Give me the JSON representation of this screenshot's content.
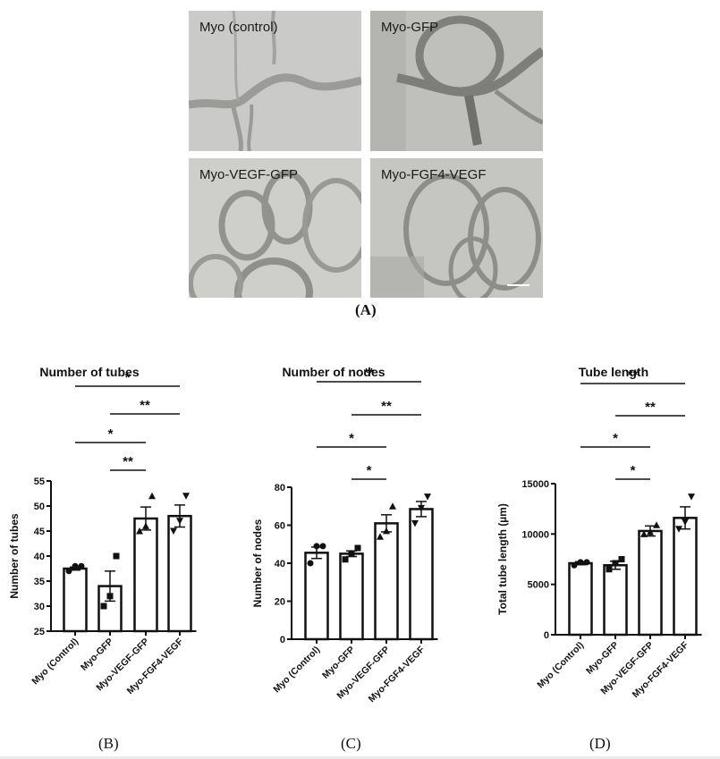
{
  "panel_a": {
    "letter": "(A)",
    "images": [
      {
        "label": "Myo (control)"
      },
      {
        "label": "Myo-GFP"
      },
      {
        "label": "Myo-VEGF-GFP"
      },
      {
        "label": "Myo-FGF4-VEGF"
      }
    ]
  },
  "panel_letters": {
    "b": "(B)",
    "c": "(C)",
    "d": "(D)"
  },
  "chart_data": [
    {
      "type": "bar",
      "panel": "B",
      "title": "Number of tubes",
      "xlabel": "",
      "ylabel": "Number of tubes",
      "categories": [
        "Myo (Control)",
        "Myo-GFP",
        "Myo-VEGF-GFP",
        "Myo-FGF4-VEGF"
      ],
      "values": [
        37.5,
        34,
        47.5,
        48
      ],
      "sem": [
        0.3,
        3.0,
        2.3,
        2.2
      ],
      "points": [
        [
          37,
          38,
          38
        ],
        [
          30,
          32,
          40
        ],
        [
          45,
          46,
          52
        ],
        [
          45,
          47,
          52
        ]
      ],
      "markers": [
        "circle",
        "square",
        "triangle-up",
        "triangle-down"
      ],
      "ylim": [
        25,
        55
      ],
      "yticks": [
        25,
        30,
        35,
        40,
        45,
        50,
        55
      ],
      "significance": [
        {
          "from": 0,
          "to": 3,
          "label": "*"
        },
        {
          "from": 1,
          "to": 3,
          "label": "**"
        },
        {
          "from": 0,
          "to": 2,
          "label": "*"
        },
        {
          "from": 1,
          "to": 2,
          "label": "**"
        }
      ],
      "grid": false
    },
    {
      "type": "bar",
      "panel": "C",
      "title": "Number of nodes",
      "xlabel": "",
      "ylabel": "Number of nodes",
      "categories": [
        "Myo (Control)",
        "Myo-GFP",
        "Myo-VEGF-GFP",
        "Myo-FGF4-VEGF"
      ],
      "values": [
        45.5,
        45,
        61,
        68.5
      ],
      "sem": [
        3.0,
        1.5,
        4.5,
        4.0
      ],
      "points": [
        [
          40,
          49,
          49
        ],
        [
          42,
          45,
          48
        ],
        [
          54,
          57,
          70
        ],
        [
          61,
          69,
          75
        ]
      ],
      "markers": [
        "circle",
        "square",
        "triangle-up",
        "triangle-down"
      ],
      "ylim": [
        0,
        80
      ],
      "yticks": [
        0,
        20,
        40,
        60,
        80
      ],
      "significance": [
        {
          "from": 0,
          "to": 3,
          "label": "**"
        },
        {
          "from": 1,
          "to": 3,
          "label": "**"
        },
        {
          "from": 0,
          "to": 2,
          "label": "*"
        },
        {
          "from": 1,
          "to": 2,
          "label": "*"
        }
      ],
      "grid": false
    },
    {
      "type": "bar",
      "panel": "D",
      "title": "Tube length",
      "xlabel": "",
      "ylabel": "Total tube length (µm)",
      "categories": [
        "Myo (Control)",
        "Myo-GFP",
        "Myo-VEGF-GFP",
        "Myo-FGF4-VEGF"
      ],
      "values": [
        7100,
        6900,
        10300,
        11600
      ],
      "sem": [
        150,
        400,
        500,
        1100
      ],
      "points": [
        [
          6900,
          7200,
          7200
        ],
        [
          6500,
          7100,
          7500
        ],
        [
          10000,
          10200,
          10900
        ],
        [
          10500,
          11200,
          13700
        ]
      ],
      "markers": [
        "circle",
        "square",
        "triangle-up",
        "triangle-down"
      ],
      "ylim": [
        0,
        15000
      ],
      "yticks": [
        0,
        5000,
        10000,
        15000
      ],
      "significance": [
        {
          "from": 0,
          "to": 3,
          "label": "**"
        },
        {
          "from": 1,
          "to": 3,
          "label": "**"
        },
        {
          "from": 0,
          "to": 2,
          "label": "*"
        },
        {
          "from": 1,
          "to": 2,
          "label": "*"
        }
      ],
      "grid": false
    }
  ]
}
